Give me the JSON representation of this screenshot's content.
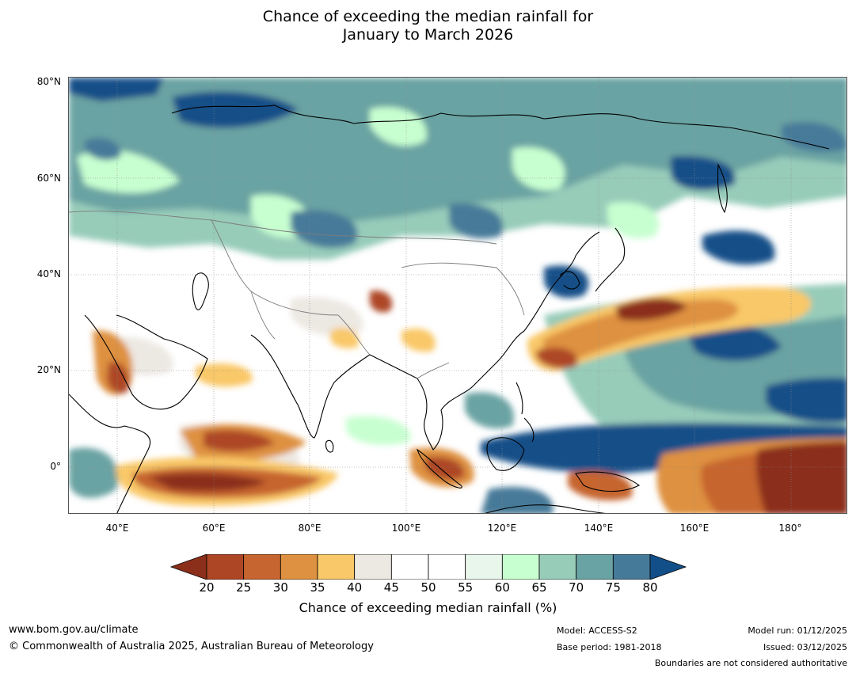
{
  "title": {
    "line1": "Chance of exceeding the median rainfall for",
    "line2": "January to March 2026"
  },
  "map": {
    "lat_labels": [
      "80°N",
      "60°N",
      "40°N",
      "20°N",
      "0°"
    ],
    "lon_labels": [
      "40°E",
      "60°E",
      "80°E",
      "100°E",
      "120°E",
      "140°E",
      "160°E",
      "180°"
    ]
  },
  "colorbar": {
    "ticks": [
      "20",
      "25",
      "30",
      "35",
      "40",
      "45",
      "50",
      "55",
      "60",
      "65",
      "70",
      "75",
      "80"
    ],
    "colors": [
      "#8b2f1a",
      "#ad4625",
      "#c6652f",
      "#de9140",
      "#f9c868",
      "#ece8e2",
      "#ffffff",
      "#ffffff",
      "#e9f6ec",
      "#c8ffd0",
      "#97ccb9",
      "#6aa3a3",
      "#467a99",
      "#124f88"
    ],
    "label": "Chance of exceeding median rainfall (%)"
  },
  "footer": {
    "url": "www.bom.gov.au/climate",
    "copyright": "© Commonwealth of Australia 2025, Australian Bureau of Meteorology",
    "model": "Model: ACCESS-S2",
    "base_period": "Base period: 1981-2018",
    "model_run": "Model run: 01/12/2025",
    "issued": "Issued: 03/12/2025",
    "disclaimer": "Boundaries are not considered authoritative"
  }
}
